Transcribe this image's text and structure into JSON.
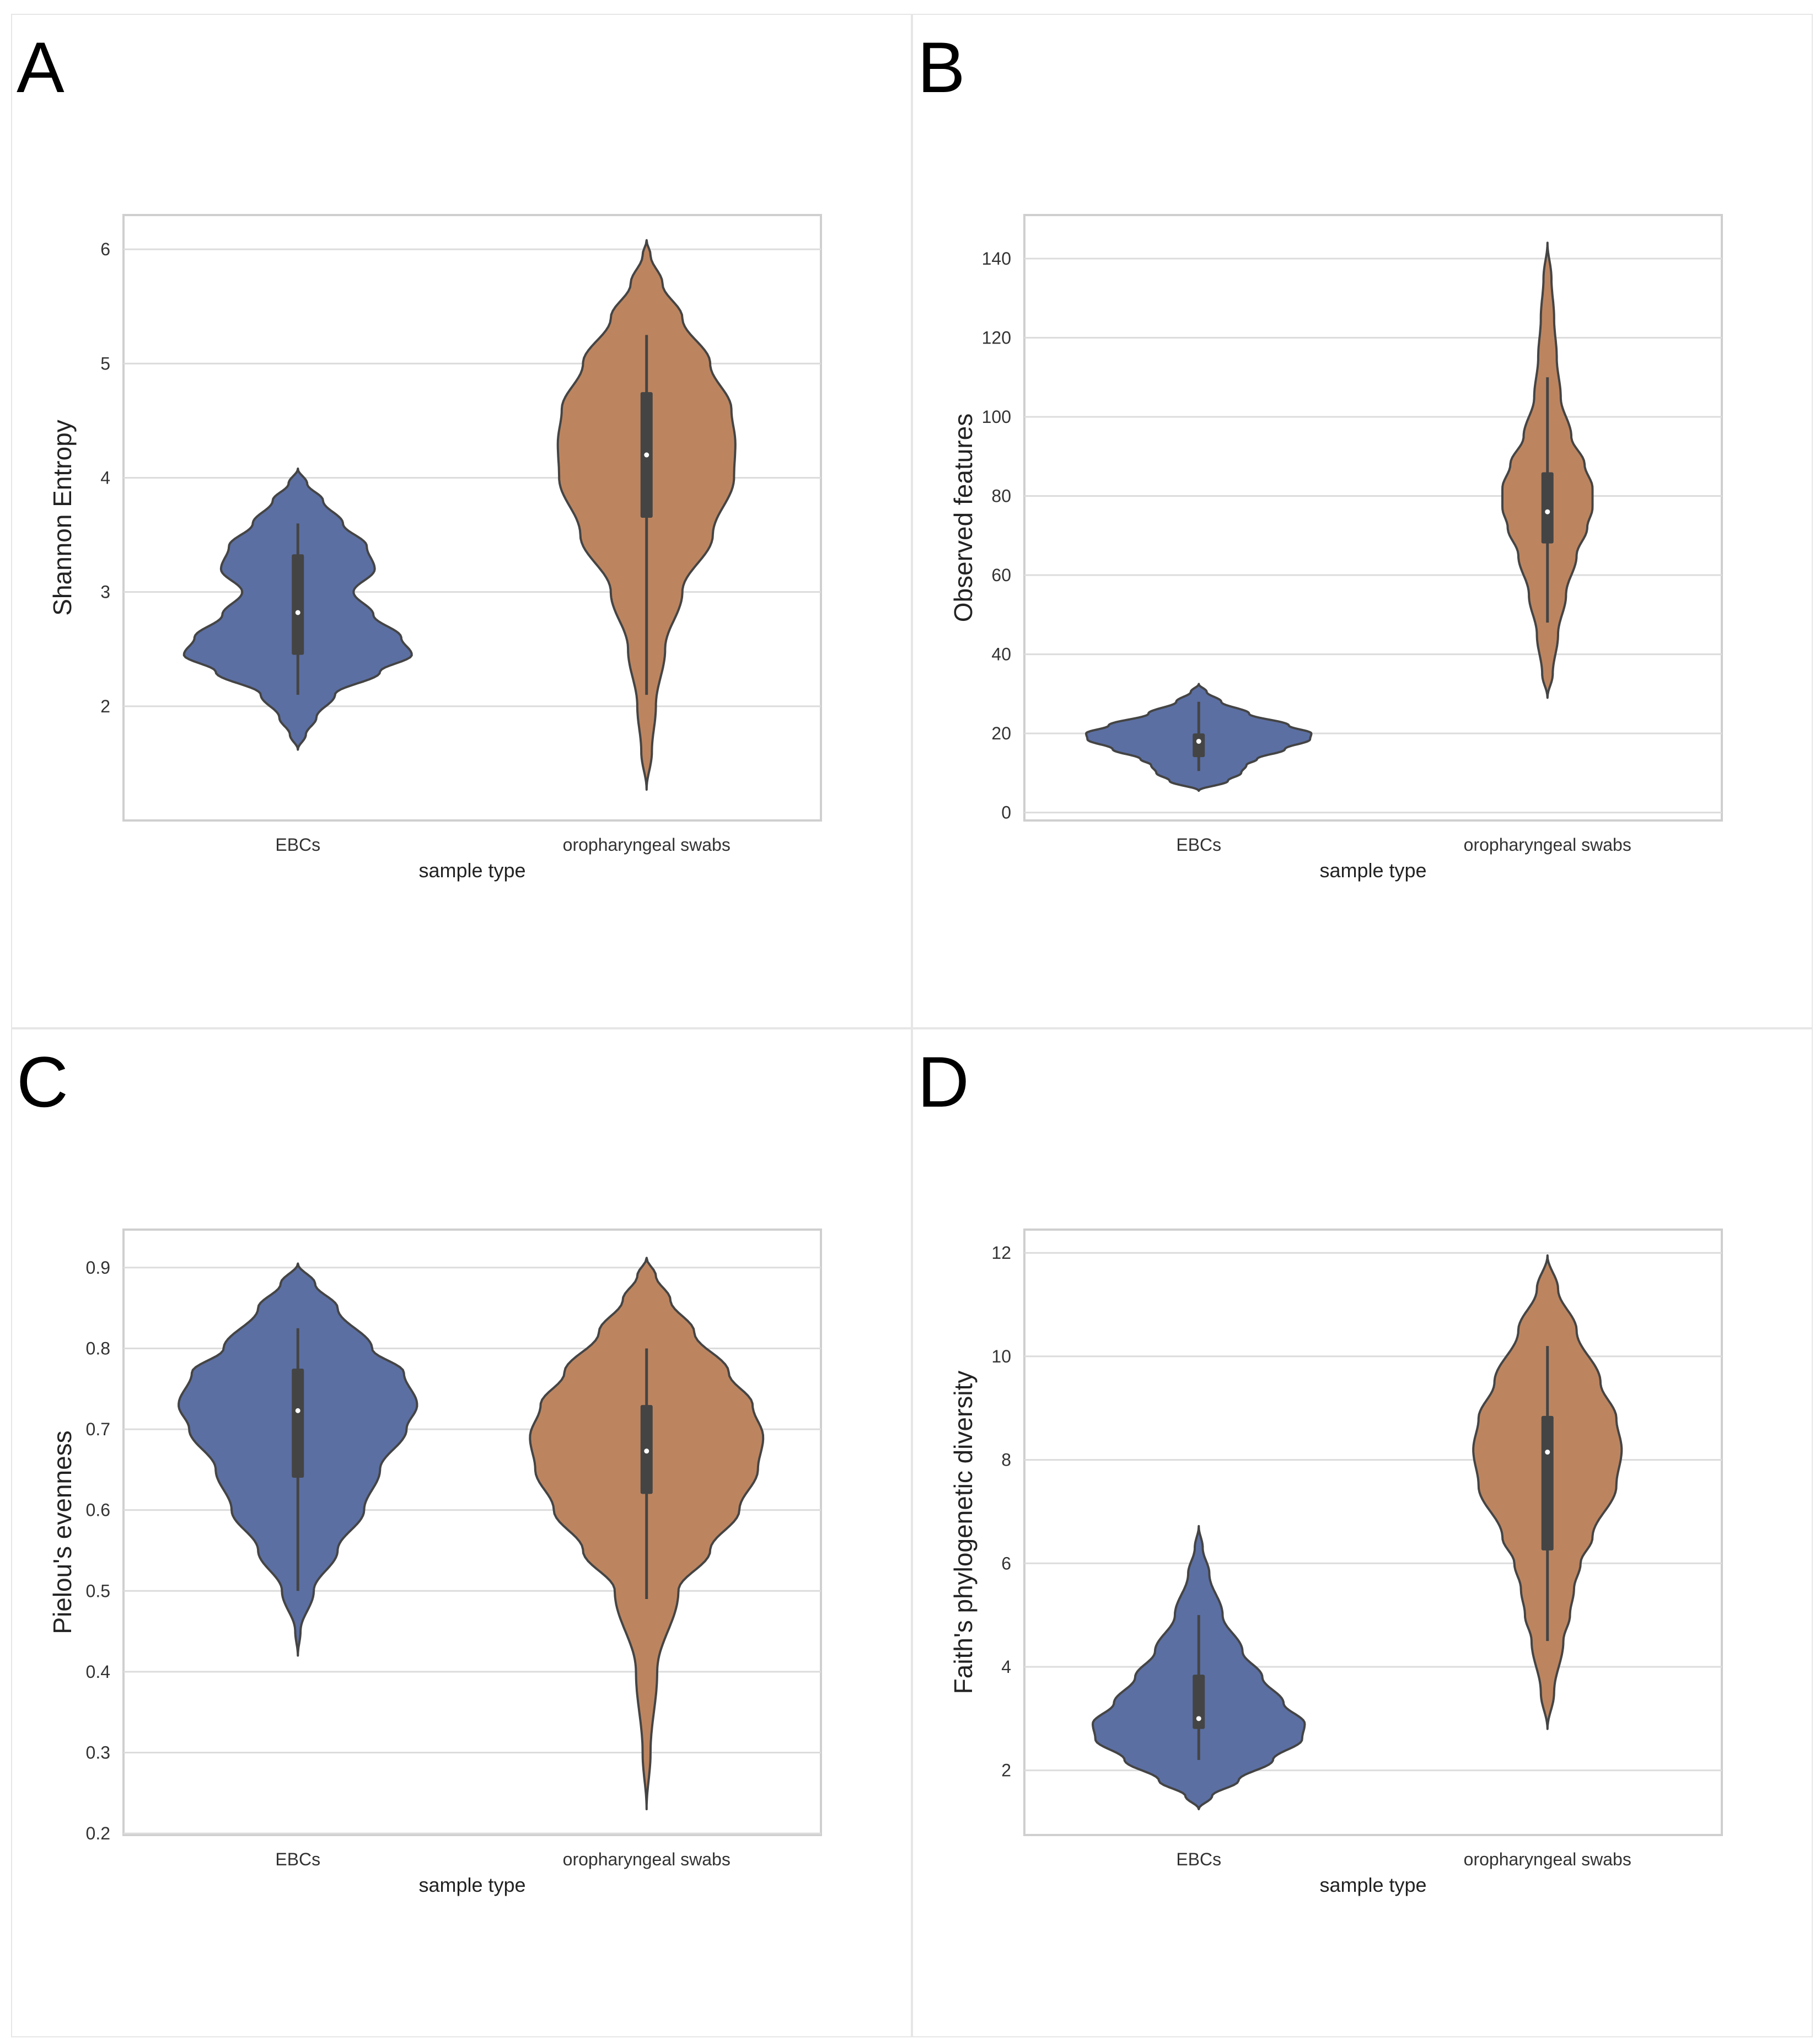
{
  "colors": {
    "ebcs": "#5b6fa3",
    "swabs": "#bc8560",
    "outline": "#444444",
    "grid": "#dcdcdc",
    "frame": "#cfcfcf"
  },
  "chart_data": [
    {
      "type": "violin",
      "panel": "A",
      "xlabel": "sample type",
      "ylabel": "Shannon Entropy",
      "categories": [
        "EBCs",
        "oropharyngeal swabs"
      ],
      "ylim": [
        1.0,
        6.3
      ],
      "yticks": [
        2,
        3,
        4,
        5,
        6
      ],
      "violins": [
        {
          "category": "EBCs",
          "kde_min": 1.62,
          "kde_max": 4.08,
          "whisker": [
            2.1,
            3.6
          ],
          "box": [
            2.45,
            3.33
          ],
          "median": 2.82,
          "profile": [
            [
              1.62,
              0.0
            ],
            [
              1.75,
              0.06
            ],
            [
              1.9,
              0.14
            ],
            [
              2.1,
              0.28
            ],
            [
              2.3,
              0.62
            ],
            [
              2.45,
              0.86
            ],
            [
              2.6,
              0.78
            ],
            [
              2.8,
              0.57
            ],
            [
              3.0,
              0.42
            ],
            [
              3.2,
              0.58
            ],
            [
              3.4,
              0.52
            ],
            [
              3.6,
              0.34
            ],
            [
              3.8,
              0.19
            ],
            [
              3.95,
              0.07
            ],
            [
              4.08,
              0.0
            ]
          ]
        },
        {
          "category": "oropharyngeal swabs",
          "kde_min": 1.27,
          "kde_max": 6.08,
          "whisker": [
            2.1,
            5.25
          ],
          "box": [
            3.65,
            4.75
          ],
          "median": 4.2,
          "profile": [
            [
              1.27,
              0.0
            ],
            [
              1.6,
              0.04
            ],
            [
              2.0,
              0.07
            ],
            [
              2.5,
              0.14
            ],
            [
              3.0,
              0.27
            ],
            [
              3.5,
              0.5
            ],
            [
              4.0,
              0.66
            ],
            [
              4.3,
              0.67
            ],
            [
              4.6,
              0.64
            ],
            [
              5.0,
              0.48
            ],
            [
              5.4,
              0.27
            ],
            [
              5.7,
              0.12
            ],
            [
              5.95,
              0.03
            ],
            [
              6.08,
              0.0
            ]
          ]
        }
      ]
    },
    {
      "type": "violin",
      "panel": "B",
      "xlabel": "sample type",
      "ylabel": "Observed features",
      "categories": [
        "EBCs",
        "oropharyngeal swabs"
      ],
      "ylim": [
        -2,
        151
      ],
      "yticks": [
        0,
        20,
        40,
        60,
        80,
        100,
        120,
        140
      ],
      "violins": [
        {
          "category": "EBCs",
          "kde_min": 5.5,
          "kde_max": 32.5,
          "whisker": [
            10.5,
            28
          ],
          "box": [
            14,
            20
          ],
          "median": 18,
          "profile": [
            [
              5.5,
              0.0
            ],
            [
              8,
              0.22
            ],
            [
              10,
              0.32
            ],
            [
              12,
              0.36
            ],
            [
              13.5,
              0.44
            ],
            [
              16,
              0.65
            ],
            [
              18.5,
              0.84
            ],
            [
              20,
              0.85
            ],
            [
              22,
              0.68
            ],
            [
              25,
              0.38
            ],
            [
              28,
              0.17
            ],
            [
              30.5,
              0.06
            ],
            [
              32.5,
              0.0
            ]
          ]
        },
        {
          "category": "oropharyngeal swabs",
          "kde_min": 29,
          "kde_max": 144,
          "whisker": [
            48,
            110
          ],
          "box": [
            68,
            86
          ],
          "median": 76,
          "profile": [
            [
              29,
              0.0
            ],
            [
              35,
              0.04
            ],
            [
              45,
              0.08
            ],
            [
              55,
              0.14
            ],
            [
              65,
              0.22
            ],
            [
              72,
              0.3
            ],
            [
              77,
              0.34
            ],
            [
              82,
              0.34
            ],
            [
              88,
              0.28
            ],
            [
              95,
              0.18
            ],
            [
              105,
              0.1
            ],
            [
              115,
              0.07
            ],
            [
              125,
              0.05
            ],
            [
              135,
              0.03
            ],
            [
              144,
              0.0
            ]
          ]
        }
      ]
    },
    {
      "type": "violin",
      "panel": "C",
      "xlabel": "sample type",
      "ylabel": "Pielou's evenness",
      "categories": [
        "EBCs",
        "oropharyngeal swabs"
      ],
      "ylim": [
        0.198,
        0.947
      ],
      "yticks": [
        0.2,
        0.3,
        0.4,
        0.5,
        0.6,
        0.7,
        0.8,
        0.9
      ],
      "violins": [
        {
          "category": "EBCs",
          "kde_min": 0.42,
          "kde_max": 0.905,
          "whisker": [
            0.5,
            0.825
          ],
          "box": [
            0.64,
            0.775
          ],
          "median": 0.723,
          "profile": [
            [
              0.42,
              0.0
            ],
            [
              0.45,
              0.02
            ],
            [
              0.5,
              0.12
            ],
            [
              0.55,
              0.3
            ],
            [
              0.6,
              0.5
            ],
            [
              0.65,
              0.62
            ],
            [
              0.7,
              0.82
            ],
            [
              0.73,
              0.9
            ],
            [
              0.77,
              0.8
            ],
            [
              0.8,
              0.56
            ],
            [
              0.85,
              0.3
            ],
            [
              0.88,
              0.13
            ],
            [
              0.905,
              0.0
            ]
          ]
        },
        {
          "category": "oropharyngeal swabs",
          "kde_min": 0.23,
          "kde_max": 0.912,
          "whisker": [
            0.49,
            0.8
          ],
          "box": [
            0.62,
            0.73
          ],
          "median": 0.673,
          "profile": [
            [
              0.23,
              0.0
            ],
            [
              0.3,
              0.03
            ],
            [
              0.4,
              0.08
            ],
            [
              0.5,
              0.24
            ],
            [
              0.55,
              0.48
            ],
            [
              0.6,
              0.7
            ],
            [
              0.65,
              0.84
            ],
            [
              0.69,
              0.88
            ],
            [
              0.73,
              0.8
            ],
            [
              0.77,
              0.62
            ],
            [
              0.82,
              0.36
            ],
            [
              0.86,
              0.18
            ],
            [
              0.89,
              0.07
            ],
            [
              0.912,
              0.0
            ]
          ]
        }
      ]
    },
    {
      "type": "violin",
      "panel": "D",
      "xlabel": "sample type",
      "ylabel": "Faith's phylogenetic diversity",
      "categories": [
        "EBCs",
        "oropharyngeal swabs"
      ],
      "ylim": [
        0.75,
        12.45
      ],
      "yticks": [
        2,
        4,
        6,
        8,
        10,
        12
      ],
      "violins": [
        {
          "category": "EBCs",
          "kde_min": 1.25,
          "kde_max": 6.72,
          "whisker": [
            2.2,
            5.0
          ],
          "box": [
            2.8,
            3.85
          ],
          "median": 3.0,
          "profile": [
            [
              1.25,
              0.0
            ],
            [
              1.5,
              0.1
            ],
            [
              1.8,
              0.3
            ],
            [
              2.2,
              0.56
            ],
            [
              2.6,
              0.78
            ],
            [
              2.9,
              0.8
            ],
            [
              3.3,
              0.64
            ],
            [
              3.8,
              0.48
            ],
            [
              4.3,
              0.33
            ],
            [
              5.0,
              0.18
            ],
            [
              5.8,
              0.08
            ],
            [
              6.3,
              0.03
            ],
            [
              6.72,
              0.0
            ]
          ]
        },
        {
          "category": "oropharyngeal swabs",
          "kde_min": 2.8,
          "kde_max": 11.95,
          "whisker": [
            4.5,
            10.2
          ],
          "box": [
            6.25,
            8.85
          ],
          "median": 8.15,
          "profile": [
            [
              2.8,
              0.0
            ],
            [
              3.5,
              0.05
            ],
            [
              4.5,
              0.12
            ],
            [
              5.0,
              0.17
            ],
            [
              5.5,
              0.2
            ],
            [
              6.0,
              0.25
            ],
            [
              6.5,
              0.34
            ],
            [
              7.5,
              0.52
            ],
            [
              8.2,
              0.56
            ],
            [
              8.8,
              0.52
            ],
            [
              9.5,
              0.4
            ],
            [
              10.5,
              0.22
            ],
            [
              11.3,
              0.08
            ],
            [
              11.95,
              0.0
            ]
          ]
        }
      ]
    }
  ],
  "panels": [
    {
      "letter": "A",
      "ylabel": "Shannon Entropy",
      "xlabel": "sample type",
      "x_tick_labels": [
        "EBCs",
        "oropharyngeal swabs"
      ]
    },
    {
      "letter": "B",
      "ylabel": "Observed features",
      "xlabel": "sample type",
      "x_tick_labels": [
        "EBCs",
        "oropharyngeal swabs"
      ]
    },
    {
      "letter": "C",
      "ylabel": "Pielou's evenness",
      "xlabel": "sample type",
      "x_tick_labels": [
        "EBCs",
        "oropharyngeal swabs"
      ]
    },
    {
      "letter": "D",
      "ylabel": "Faith's phylogenetic diversity",
      "xlabel": "sample type",
      "x_tick_labels": [
        "EBCs",
        "oropharyngeal swabs"
      ]
    }
  ]
}
